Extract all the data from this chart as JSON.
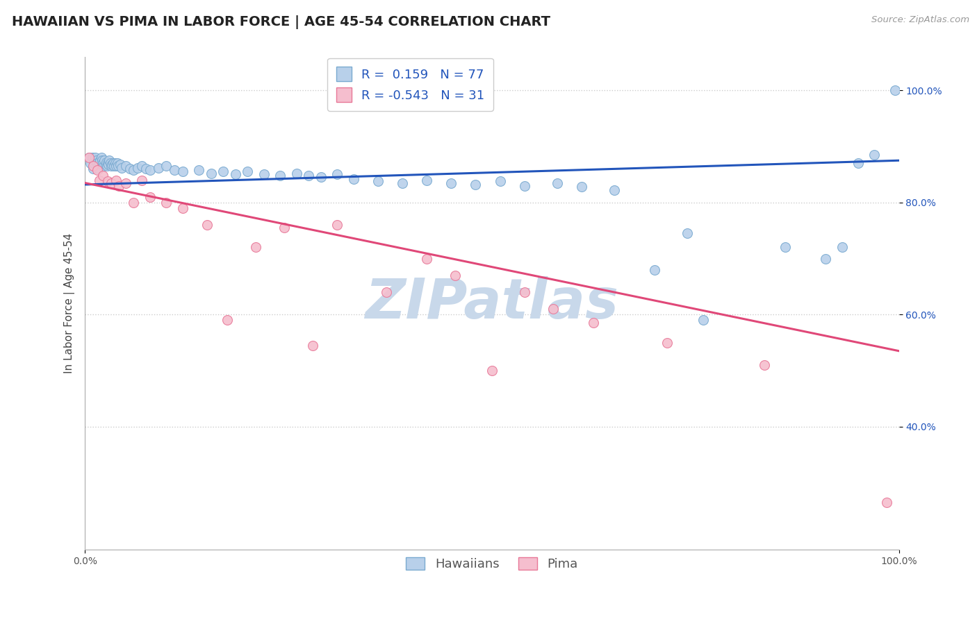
{
  "title": "HAWAIIAN VS PIMA IN LABOR FORCE | AGE 45-54 CORRELATION CHART",
  "source_text": "Source: ZipAtlas.com",
  "ylabel": "In Labor Force | Age 45-54",
  "xlim": [
    0.0,
    1.0
  ],
  "ylim": [
    0.18,
    1.06
  ],
  "xtick_positions": [
    0.0,
    1.0
  ],
  "xticklabels": [
    "0.0%",
    "100.0%"
  ],
  "ytick_positions": [
    0.4,
    0.6,
    0.8,
    1.0
  ],
  "ytick_labels": [
    "40.0%",
    "60.0%",
    "80.0%",
    "100.0%"
  ],
  "hawaiian_color": "#b8d0ea",
  "hawaiian_edge": "#7aaad0",
  "pima_color": "#f5bece",
  "pima_edge": "#e87898",
  "trend_hawaiian_color": "#2255bb",
  "trend_pima_color": "#e04878",
  "R_hawaiian": 0.159,
  "N_hawaiian": 77,
  "R_pima": -0.543,
  "N_pima": 31,
  "legend_label_hawaiian": "Hawaiians",
  "legend_label_pima": "Pima",
  "watermark_text": "ZIPatlas",
  "watermark_color": "#c8d8ea",
  "hawaiian_x": [
    0.005,
    0.007,
    0.009,
    0.01,
    0.011,
    0.012,
    0.013,
    0.014,
    0.015,
    0.016,
    0.017,
    0.018,
    0.019,
    0.02,
    0.021,
    0.022,
    0.023,
    0.024,
    0.025,
    0.026,
    0.027,
    0.028,
    0.029,
    0.03,
    0.031,
    0.032,
    0.033,
    0.035,
    0.036,
    0.037,
    0.038,
    0.04,
    0.041,
    0.043,
    0.045,
    0.05,
    0.055,
    0.06,
    0.065,
    0.07,
    0.075,
    0.08,
    0.09,
    0.1,
    0.11,
    0.12,
    0.14,
    0.155,
    0.17,
    0.185,
    0.2,
    0.22,
    0.24,
    0.26,
    0.275,
    0.29,
    0.31,
    0.33,
    0.36,
    0.39,
    0.42,
    0.45,
    0.48,
    0.51,
    0.54,
    0.58,
    0.61,
    0.65,
    0.7,
    0.74,
    0.76,
    0.86,
    0.91,
    0.93,
    0.95,
    0.97,
    0.995
  ],
  "hawaiian_y": [
    0.88,
    0.87,
    0.88,
    0.86,
    0.87,
    0.875,
    0.88,
    0.875,
    0.87,
    0.865,
    0.86,
    0.87,
    0.875,
    0.88,
    0.875,
    0.87,
    0.865,
    0.875,
    0.868,
    0.872,
    0.865,
    0.87,
    0.868,
    0.875,
    0.87,
    0.865,
    0.868,
    0.87,
    0.865,
    0.87,
    0.865,
    0.87,
    0.865,
    0.868,
    0.862,
    0.865,
    0.86,
    0.858,
    0.862,
    0.865,
    0.86,
    0.858,
    0.862,
    0.865,
    0.858,
    0.855,
    0.858,
    0.852,
    0.855,
    0.85,
    0.855,
    0.85,
    0.848,
    0.852,
    0.848,
    0.845,
    0.85,
    0.842,
    0.838,
    0.835,
    0.84,
    0.835,
    0.832,
    0.838,
    0.83,
    0.835,
    0.828,
    0.822,
    0.68,
    0.745,
    0.59,
    0.72,
    0.7,
    0.72,
    0.87,
    0.885,
    1.0
  ],
  "pima_x": [
    0.005,
    0.01,
    0.015,
    0.018,
    0.022,
    0.028,
    0.032,
    0.038,
    0.042,
    0.05,
    0.06,
    0.07,
    0.08,
    0.1,
    0.12,
    0.15,
    0.175,
    0.21,
    0.245,
    0.28,
    0.31,
    0.37,
    0.42,
    0.455,
    0.5,
    0.54,
    0.575,
    0.625,
    0.715,
    0.835,
    0.985
  ],
  "pima_y": [
    0.88,
    0.865,
    0.858,
    0.84,
    0.848,
    0.838,
    0.835,
    0.84,
    0.83,
    0.835,
    0.8,
    0.84,
    0.81,
    0.8,
    0.79,
    0.76,
    0.59,
    0.72,
    0.755,
    0.545,
    0.76,
    0.64,
    0.7,
    0.67,
    0.5,
    0.64,
    0.61,
    0.585,
    0.55,
    0.51,
    0.265
  ],
  "hawaiian_trend_y_start": 0.832,
  "hawaiian_trend_y_end": 0.875,
  "pima_trend_y_start": 0.835,
  "pima_trend_y_end": 0.535,
  "grid_color": "#cccccc",
  "background_color": "#ffffff",
  "title_fontsize": 14,
  "axis_label_fontsize": 11,
  "tick_fontsize": 10,
  "legend_fontsize": 13,
  "dot_size": 100
}
